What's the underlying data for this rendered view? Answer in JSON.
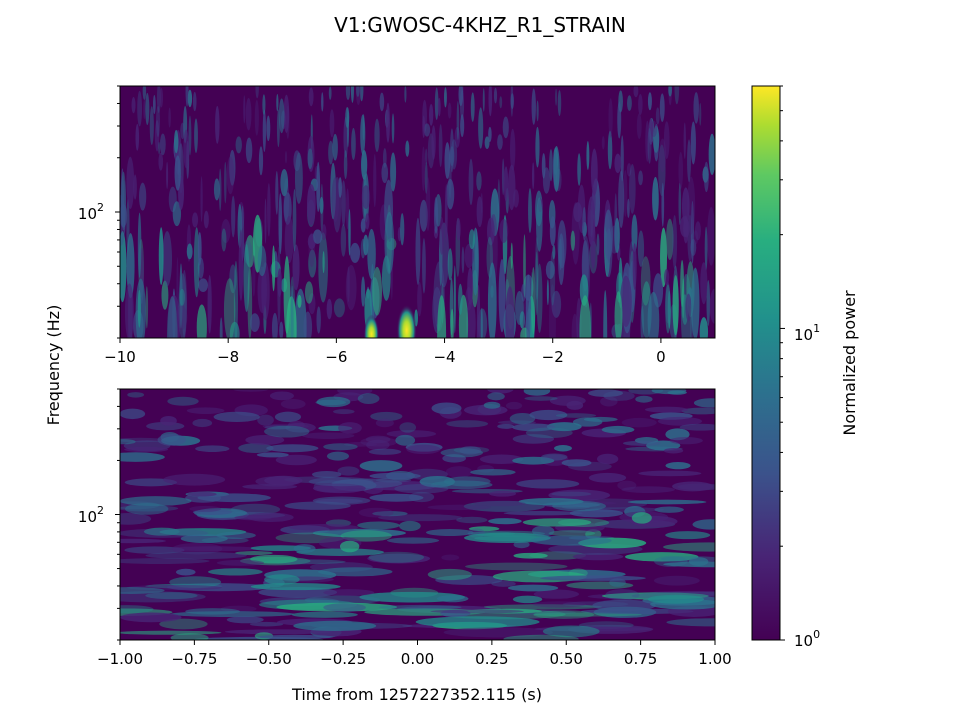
{
  "chart_data": {
    "type": "heatmap",
    "title": "V1:GWOSC-4KHZ_R1_STRAIN",
    "ylabel": "Frequency (Hz)",
    "xlabel": "Time from 1257227352.115 (s)",
    "colormap": "viridis",
    "colors": {
      "low": "#440154",
      "mid": "#21918c",
      "high": "#fde725"
    },
    "colorbar": {
      "label": "Normalized power",
      "scale": "log",
      "range": [
        1,
        60
      ],
      "ticks": [
        {
          "base": "10",
          "exp": "0",
          "value": 1
        },
        {
          "base": "10",
          "exp": "1",
          "value": 10
        }
      ]
    },
    "panels": [
      {
        "name": "top",
        "yscale": "log",
        "ylim": [
          20,
          500
        ],
        "xlim": [
          -10,
          1
        ],
        "xticks": [
          -10,
          -8,
          -6,
          -4,
          -2,
          0
        ],
        "xtick_labels": [
          "−10",
          "−8",
          "−6",
          "−4",
          "−2",
          "0"
        ],
        "ytick": {
          "base": "10",
          "exp": "2",
          "value": 100
        },
        "highlights": [
          {
            "time": -4.7,
            "freq": 22,
            "power": 60
          },
          {
            "time": -5.35,
            "freq": 21,
            "power": 30
          }
        ]
      },
      {
        "name": "bottom",
        "yscale": "log",
        "ylim": [
          20,
          500
        ],
        "xlim": [
          -1,
          1
        ],
        "xticks": [
          -1,
          -0.75,
          -0.5,
          -0.25,
          0,
          0.25,
          0.5,
          0.75,
          1
        ],
        "xtick_labels": [
          "−1.00",
          "−0.75",
          "−0.50",
          "−0.25",
          "0.00",
          "0.25",
          "0.50",
          "0.75",
          "1.00"
        ],
        "ytick": {
          "base": "10",
          "exp": "2",
          "value": 100
        }
      }
    ]
  }
}
